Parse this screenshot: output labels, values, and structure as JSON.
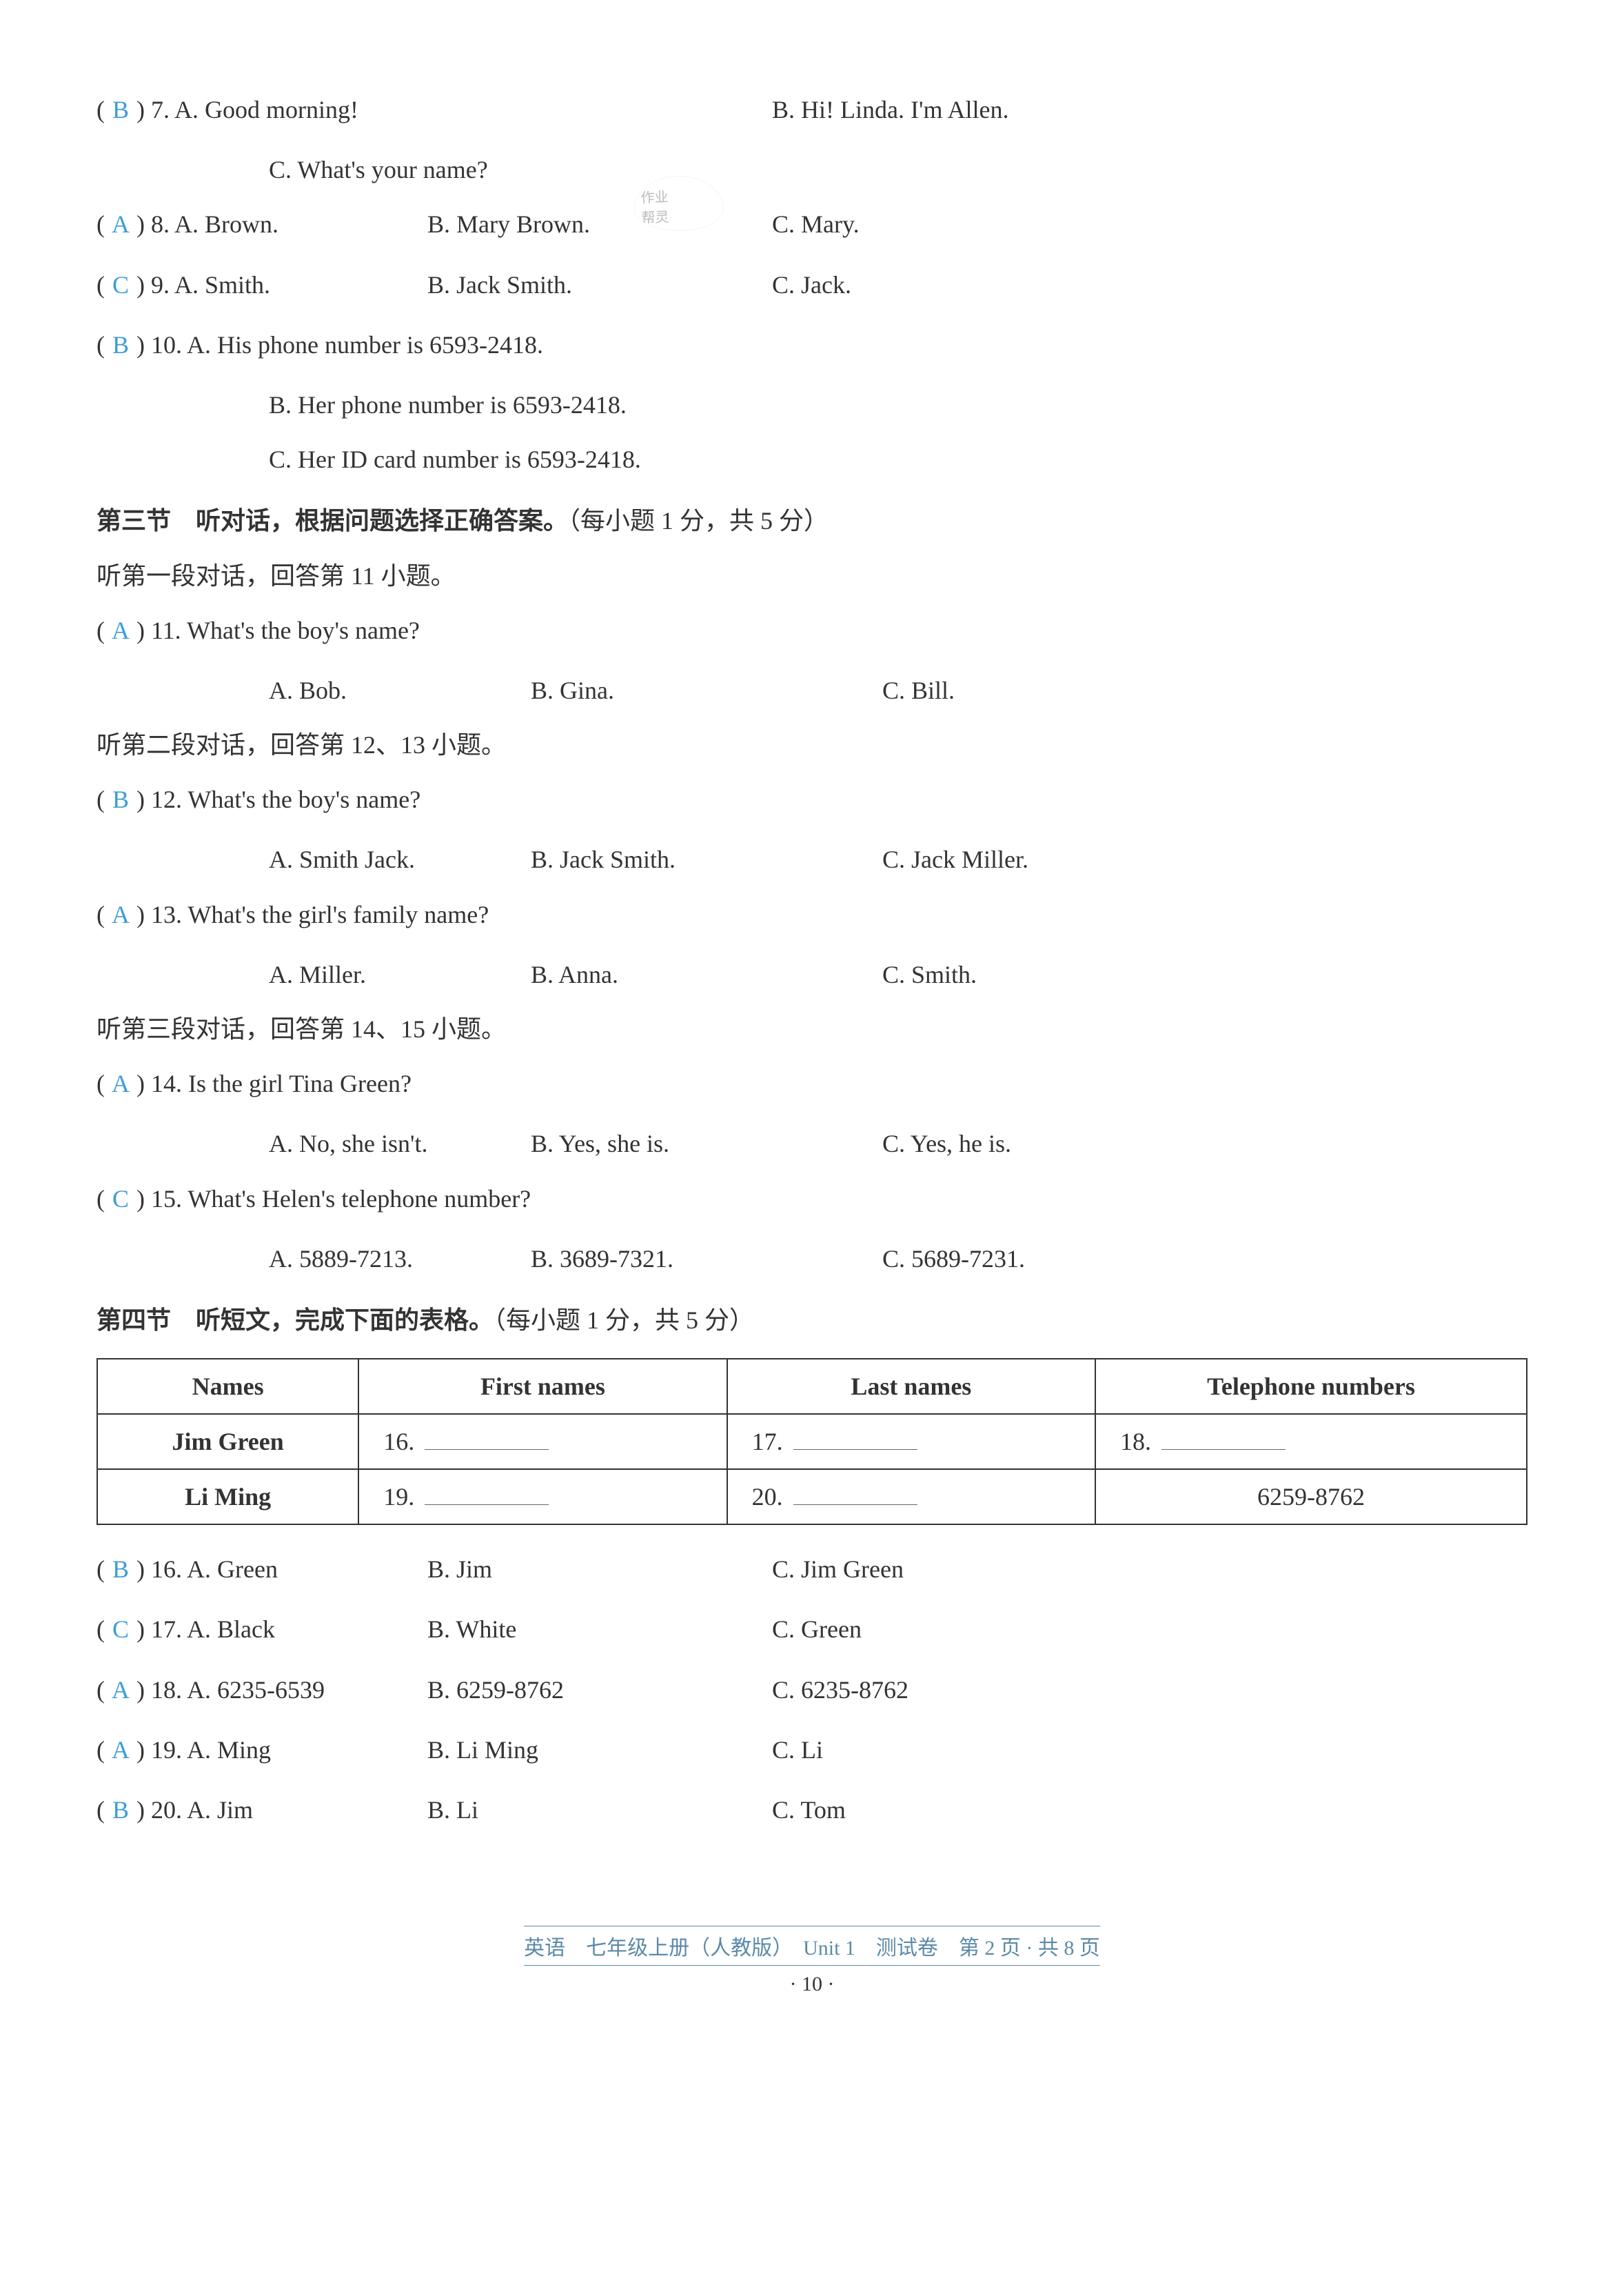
{
  "questions": {
    "q7": {
      "answer": "B",
      "num": "7.",
      "a": "A.  Good morning!",
      "b": "B.  Hi! Linda. I'm Allen.",
      "c": "C.  What's your name?"
    },
    "q8": {
      "answer": "A",
      "num": "8.",
      "a": "A.  Brown.",
      "b": "B.  Mary Brown.",
      "c": "C.  Mary."
    },
    "q9": {
      "answer": "C",
      "num": "9.",
      "a": "A.  Smith.",
      "b": "B.  Jack Smith.",
      "c": "C.  Jack."
    },
    "q10": {
      "answer": "B",
      "num": "10.",
      "a": "A.  His phone number is 6593-2418.",
      "b": "B.  Her phone number is 6593-2418.",
      "c": "C.  Her ID card number is 6593-2418."
    }
  },
  "section3": {
    "title": "第三节　听对话，根据问题选择正确答案。",
    "points": "（每小题 1 分，共 5 分）",
    "dialog1": "听第一段对话，回答第 11 小题。",
    "dialog2": "听第二段对话，回答第 12、13 小题。",
    "dialog3": "听第三段对话，回答第 14、15 小题。"
  },
  "q11": {
    "answer": "A",
    "num": "11.",
    "question": "What's the boy's name?",
    "a": "A.  Bob.",
    "b": "B.  Gina.",
    "c": "C.  Bill."
  },
  "q12": {
    "answer": "B",
    "num": "12.",
    "question": "What's the boy's name?",
    "a": "A.  Smith Jack.",
    "b": "B.  Jack Smith.",
    "c": "C.  Jack Miller."
  },
  "q13": {
    "answer": "A",
    "num": "13.",
    "question": "What's the girl's family name?",
    "a": "A.  Miller.",
    "b": "B.  Anna.",
    "c": "C.  Smith."
  },
  "q14": {
    "answer": "A",
    "num": "14.",
    "question": "Is the girl Tina Green?",
    "a": "A.  No, she isn't.",
    "b": "B.  Yes, she is.",
    "c": "C.  Yes, he is."
  },
  "q15": {
    "answer": "C",
    "num": "15.",
    "question": "What's Helen's telephone number?",
    "a": "A.  5889-7213.",
    "b": "B.  3689-7321.",
    "c": "C.  5689-7231."
  },
  "section4": {
    "title": "第四节　听短文，完成下面的表格。",
    "points": "（每小题 1 分，共 5 分）"
  },
  "table": {
    "headers": {
      "names": "Names",
      "first": "First names",
      "last": "Last names",
      "tel": "Telephone numbers"
    },
    "rows": {
      "r1": {
        "name": "Jim Green",
        "first": "16.",
        "last": "17.",
        "tel": "18."
      },
      "r2": {
        "name": "Li Ming",
        "first": "19.",
        "last": "20.",
        "tel": "6259-8762"
      }
    }
  },
  "q16": {
    "answer": "B",
    "num": "16.",
    "a": "A.  Green",
    "b": "B.  Jim",
    "c": "C.  Jim Green"
  },
  "q17": {
    "answer": "C",
    "num": "17.",
    "a": "A.  Black",
    "b": "B.  White",
    "c": "C.  Green"
  },
  "q18": {
    "answer": "A",
    "num": "18.",
    "a": "A.  6235-6539",
    "b": "B.  6259-8762",
    "c": "C.  6235-8762"
  },
  "q19": {
    "answer": "A",
    "num": "19.",
    "a": "A.  Ming",
    "b": "B.  Li Ming",
    "c": "C.  Li"
  },
  "q20": {
    "answer": "B",
    "num": "20.",
    "a": "A.  Jim",
    "b": "B.  Li",
    "c": "C.  Tom"
  },
  "footer": {
    "text": "英语　七年级上册（人教版）　Unit 1　测试卷　第 2 页 · 共 8 页",
    "page": "· 10 ·"
  },
  "watermark": {
    "line1": "作业",
    "line2": "帮灵"
  },
  "colors": {
    "answer": "#3b9dd6",
    "text": "#333333",
    "footer": "#5c8aa8",
    "background": "#ffffff",
    "border": "#333333"
  }
}
